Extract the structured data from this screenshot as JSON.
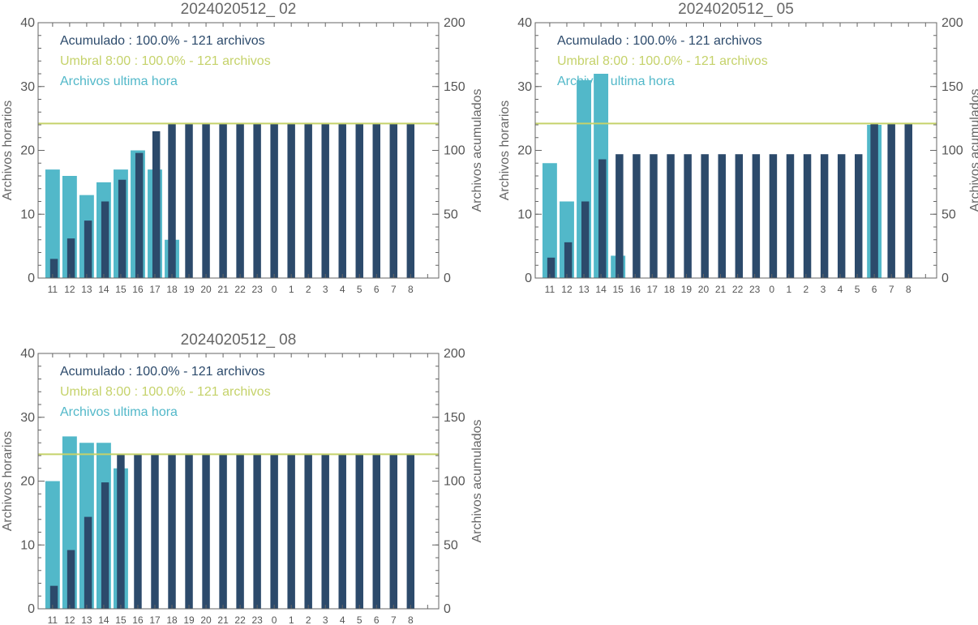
{
  "colors": {
    "hourly": "#52b8c9",
    "cumulative": "#2c4a6b",
    "threshold": "#c5d26a",
    "axis": "#666666",
    "text_cumulative": "#2c4a6b",
    "text_threshold": "#c5d26a",
    "text_hourly": "#52b8c9"
  },
  "chart_data": [
    {
      "type": "bar",
      "title": "2024020512_ 02",
      "ylabel_left": "Archivos horarios",
      "ylabel_right": "Archivos acumulados",
      "ylim_left": [
        0,
        40
      ],
      "ylim_right": [
        0,
        200
      ],
      "yticks_left": [
        "0",
        "10",
        "20",
        "30",
        "40"
      ],
      "yticks_right": [
        "0",
        "50",
        "100",
        "150",
        "200"
      ],
      "categories": [
        "11",
        "12",
        "13",
        "14",
        "15",
        "16",
        "17",
        "18",
        "19",
        "20",
        "21",
        "22",
        "23",
        "0",
        "1",
        "2",
        "3",
        "4",
        "5",
        "6",
        "7",
        "8"
      ],
      "legend": [
        "Acumulado : 100.0% - 121 archivos",
        "Umbral 8:00 : 100.0% - 121 archivos",
        "Archivos ultima hora"
      ],
      "threshold": 121,
      "series": [
        {
          "name": "Archivos ultima hora",
          "axis": "left",
          "values": [
            17,
            16,
            13,
            15,
            17,
            20,
            17,
            6,
            null,
            null,
            null,
            null,
            null,
            null,
            null,
            null,
            null,
            null,
            null,
            null,
            null,
            null
          ]
        },
        {
          "name": "Acumulado",
          "axis": "right",
          "values": [
            15,
            31,
            45,
            60,
            77,
            98,
            115,
            121,
            121,
            121,
            121,
            121,
            121,
            121,
            121,
            121,
            121,
            121,
            121,
            121,
            121,
            121
          ]
        }
      ]
    },
    {
      "type": "bar",
      "title": "2024020512_ 05",
      "ylabel_left": "Archivos horarios",
      "ylabel_right": "Archivos acumulados",
      "ylim_left": [
        0,
        40
      ],
      "ylim_right": [
        0,
        200
      ],
      "yticks_left": [
        "0",
        "10",
        "20",
        "30",
        "40"
      ],
      "yticks_right": [
        "0",
        "50",
        "100",
        "150",
        "200"
      ],
      "categories": [
        "11",
        "12",
        "13",
        "14",
        "15",
        "16",
        "17",
        "18",
        "19",
        "20",
        "21",
        "22",
        "23",
        "0",
        "1",
        "2",
        "3",
        "4",
        "5",
        "6",
        "7",
        "8"
      ],
      "legend": [
        "Acumulado : 100.0% - 121 archivos",
        "Umbral 8:00 : 100.0% - 121 archivos",
        "Archivos ultima hora"
      ],
      "threshold": 121,
      "series": [
        {
          "name": "Archivos ultima hora",
          "axis": "left",
          "values": [
            18,
            12,
            31,
            32,
            3.5,
            null,
            null,
            null,
            null,
            null,
            null,
            null,
            null,
            null,
            null,
            null,
            null,
            null,
            null,
            24,
            null,
            null
          ]
        },
        {
          "name": "Acumulado",
          "axis": "right",
          "values": [
            16,
            28,
            60,
            93,
            97,
            97,
            97,
            97,
            97,
            97,
            97,
            97,
            97,
            97,
            97,
            97,
            97,
            97,
            97,
            121,
            121,
            121
          ]
        }
      ]
    },
    {
      "type": "bar",
      "title": "2024020512_ 08",
      "ylabel_left": "Archivos horarios",
      "ylabel_right": "Archivos acumulados",
      "ylim_left": [
        0,
        40
      ],
      "ylim_right": [
        0,
        200
      ],
      "yticks_left": [
        "0",
        "10",
        "20",
        "30",
        "40"
      ],
      "yticks_right": [
        "0",
        "50",
        "100",
        "150",
        "200"
      ],
      "categories": [
        "11",
        "12",
        "13",
        "14",
        "15",
        "16",
        "17",
        "18",
        "19",
        "20",
        "21",
        "22",
        "23",
        "0",
        "1",
        "2",
        "3",
        "4",
        "5",
        "6",
        "7",
        "8"
      ],
      "legend": [
        "Acumulado : 100.0% - 121 archivos",
        "Umbral 8:00 : 100.0% - 121 archivos",
        "Archivos ultima hora"
      ],
      "threshold": 121,
      "series": [
        {
          "name": "Archivos ultima hora",
          "axis": "left",
          "values": [
            20,
            27,
            26,
            26,
            22,
            null,
            null,
            null,
            null,
            null,
            null,
            null,
            null,
            null,
            null,
            null,
            null,
            null,
            null,
            null,
            null,
            null
          ]
        },
        {
          "name": "Acumulado",
          "axis": "right",
          "values": [
            18,
            46,
            72,
            99,
            121,
            121,
            121,
            121,
            121,
            121,
            121,
            121,
            121,
            121,
            121,
            121,
            121,
            121,
            121,
            121,
            121,
            121
          ]
        }
      ]
    }
  ]
}
